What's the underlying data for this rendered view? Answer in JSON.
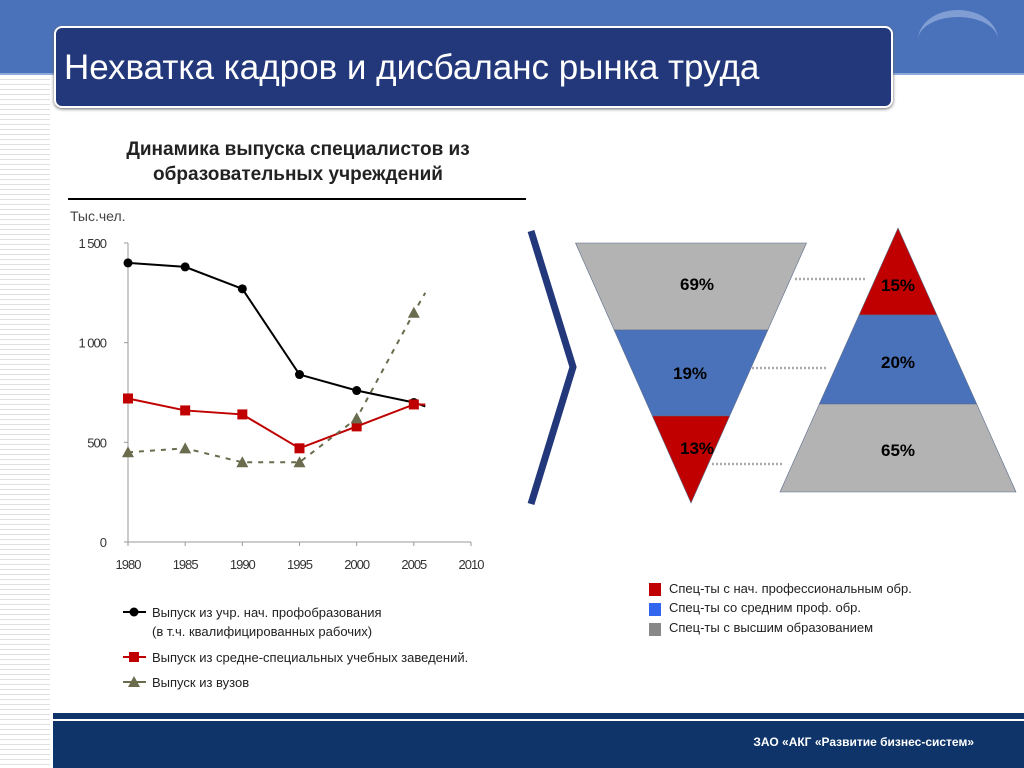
{
  "slide_title": "Нехватка кадров и дисбаланс рынка труда",
  "footer": "ЗАО «АКГ «Развитие бизнес-систем»",
  "colors": {
    "black_series": "#000000",
    "red_series": "#c00000",
    "green_series": "#6b6b4e",
    "red": "#c00000",
    "blue": "#4a72bb",
    "gray": "#b3b3b3"
  },
  "chart_data": [
    {
      "type": "line",
      "title": "Динамика выпуска специалистов из образовательных учреждений",
      "ylabel": "Тыс.чел.",
      "xlabel": "",
      "xlim": [
        1980,
        2010
      ],
      "ylim": [
        0,
        1500
      ],
      "x_ticks": [
        "1980",
        "1985",
        "1990",
        "1995",
        "2000",
        "2005",
        "2010"
      ],
      "y_ticks": [
        "0",
        "500",
        "1 000",
        "1 500"
      ],
      "y_tick_values": [
        0,
        500,
        1000,
        1500
      ],
      "x": [
        1980,
        1985,
        1990,
        1995,
        2000,
        2005
      ],
      "series": [
        {
          "name": "Выпуск из учр. нач. профобразования",
          "name2": "(в т.ч. квалифицированных рабочих)",
          "style": "solid-circle",
          "color": "#000000",
          "values": [
            1400,
            1380,
            1270,
            840,
            760,
            700
          ],
          "tail": [
            2006,
            680
          ]
        },
        {
          "name": "Выпуск из средне-специальных учебных заведений.",
          "style": "solid-square",
          "color": "#c00000",
          "values": [
            720,
            660,
            640,
            470,
            580,
            690
          ],
          "tail": [
            2006,
            690
          ]
        },
        {
          "name": "Выпуск из вузов",
          "style": "dashed-triangle",
          "color": "#6b6b4e",
          "values": [
            450,
            470,
            400,
            400,
            620,
            1150
          ],
          "tail": [
            2006,
            1250
          ]
        }
      ],
      "legend": "bottom"
    },
    {
      "type": "funnel",
      "segments": [
        {
          "label": "69%",
          "value": 69,
          "category": "gray"
        },
        {
          "label": "19%",
          "value": 19,
          "category": "blue"
        },
        {
          "label": "13%",
          "value": 13,
          "category": "red"
        }
      ]
    },
    {
      "type": "pyramid",
      "segments": [
        {
          "label": "15%",
          "value": 15,
          "category": "red"
        },
        {
          "label": "20%",
          "value": 20,
          "category": "blue"
        },
        {
          "label": "65%",
          "value": 65,
          "category": "gray"
        }
      ],
      "legend": [
        {
          "label": "Спец-ты с нач. профессиональным обр.",
          "color": "#c00000"
        },
        {
          "label": "Спец-ты со средним проф. обр.",
          "color": "#3366ee"
        },
        {
          "label": "Спец-ты с высшим образованием",
          "color": "#888888"
        }
      ]
    }
  ]
}
